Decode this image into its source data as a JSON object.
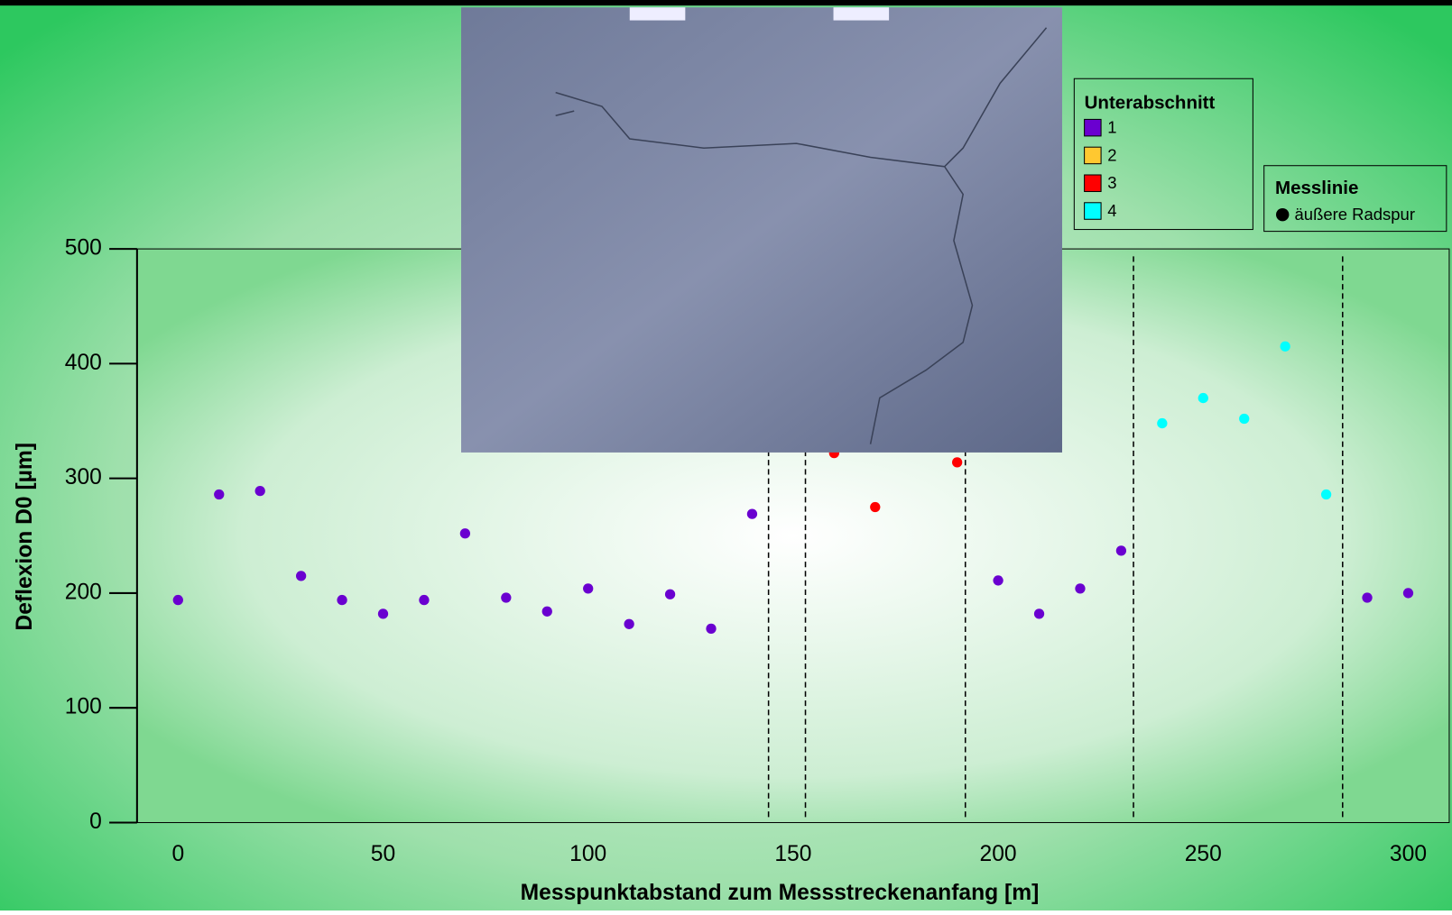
{
  "chart_data": {
    "type": "scatter",
    "x_label": "Messpunktabstand zum Messstreckenanfang [m]",
    "y_label": "Deflexion D0 [µm]",
    "xlim": [
      -10,
      310
    ],
    "ylim": [
      0,
      500
    ],
    "xticks": [
      0,
      50,
      100,
      150,
      200,
      250,
      300
    ],
    "yticks": [
      0,
      100,
      200,
      300,
      400,
      500
    ],
    "legend_title": "Unterabschnitt",
    "series": [
      {
        "name": "1",
        "color": "#6a00d0",
        "x": [
          0,
          10,
          20,
          30,
          40,
          50,
          60,
          70,
          80,
          90,
          100,
          110,
          120,
          130,
          140,
          200,
          210,
          220,
          230,
          290,
          300
        ],
        "values": [
          194,
          286,
          289,
          215,
          194,
          182,
          194,
          252,
          196,
          184,
          204,
          173,
          199,
          169,
          269,
          211,
          182,
          204,
          237,
          196,
          200
        ]
      },
      {
        "name": "2",
        "color": "#ffc830",
        "x": [],
        "values": []
      },
      {
        "name": "3",
        "color": "#ff0000",
        "x": [
          160,
          170,
          190
        ],
        "values": [
          322,
          275,
          314
        ]
      },
      {
        "name": "4",
        "color": "#00ffff",
        "x": [
          240,
          250,
          260,
          270,
          280
        ],
        "values": [
          348,
          370,
          352,
          415,
          286
        ]
      }
    ],
    "dividers": [
      144,
      153,
      192,
      233,
      284
    ],
    "second_legend": {
      "title": "Messlinie",
      "entries": [
        "äußere Radspur"
      ]
    }
  }
}
